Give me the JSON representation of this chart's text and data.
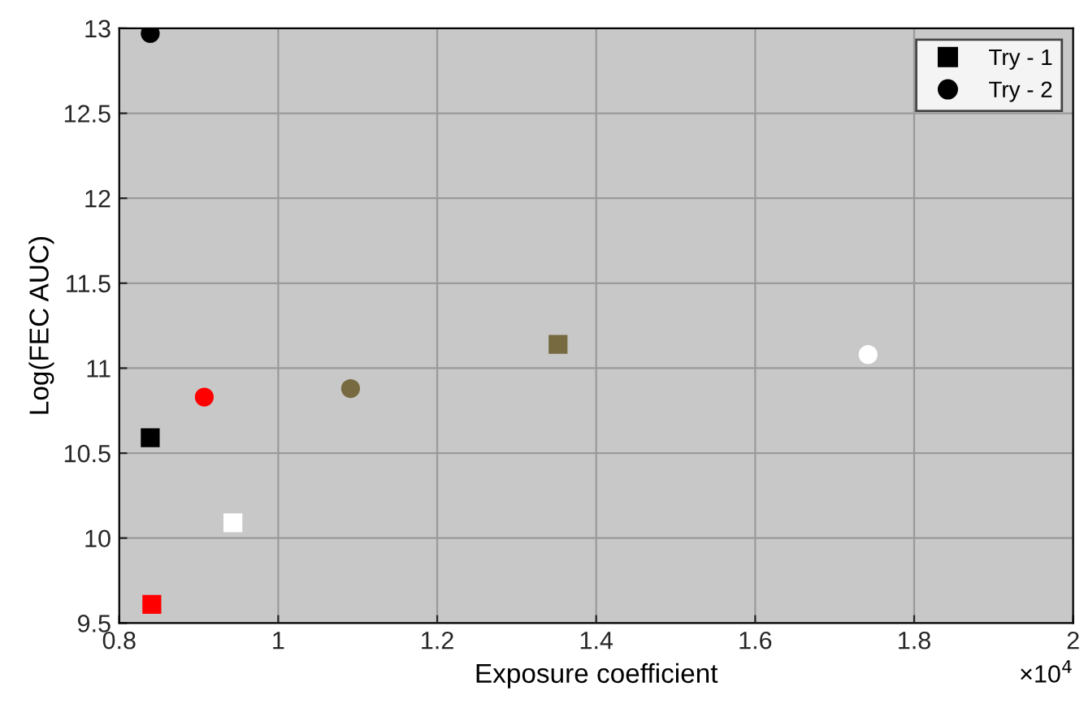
{
  "chart_data": {
    "type": "scatter",
    "xlabel": "Exposure coefficient",
    "ylabel": "Log(FEC AUC)",
    "xlim": [
      0.8,
      2
    ],
    "ylim": [
      9.5,
      13
    ],
    "xticks": [
      0.8,
      1,
      1.2,
      1.4,
      1.6,
      1.8,
      2
    ],
    "yticks": [
      9.5,
      10,
      10.5,
      11,
      11.5,
      12,
      12.5,
      13
    ],
    "grid": true,
    "legend": "top right",
    "annotations": [
      "×10$^{4}$"
    ],
    "series": [
      {
        "name": "Try - 1",
        "marker": "square",
        "color": "#000000",
        "x": [
          0.839,
          0.841,
          0.943,
          1.352
        ],
        "values": [
          10.59,
          9.61,
          10.09,
          11.14
        ],
        "colors": [
          "#000000",
          "#ff0000",
          "#ffffff",
          "#786a40"
        ]
      },
      {
        "name": "Try - 2",
        "marker": "circle",
        "color": "#000000",
        "x": [
          0.839,
          0.907,
          1.091,
          1.742
        ],
        "values": [
          12.97,
          10.83,
          10.88,
          11.08
        ],
        "colors": [
          "#000000",
          "#ff0000",
          "#786a40",
          "#ffffff"
        ]
      }
    ]
  }
}
